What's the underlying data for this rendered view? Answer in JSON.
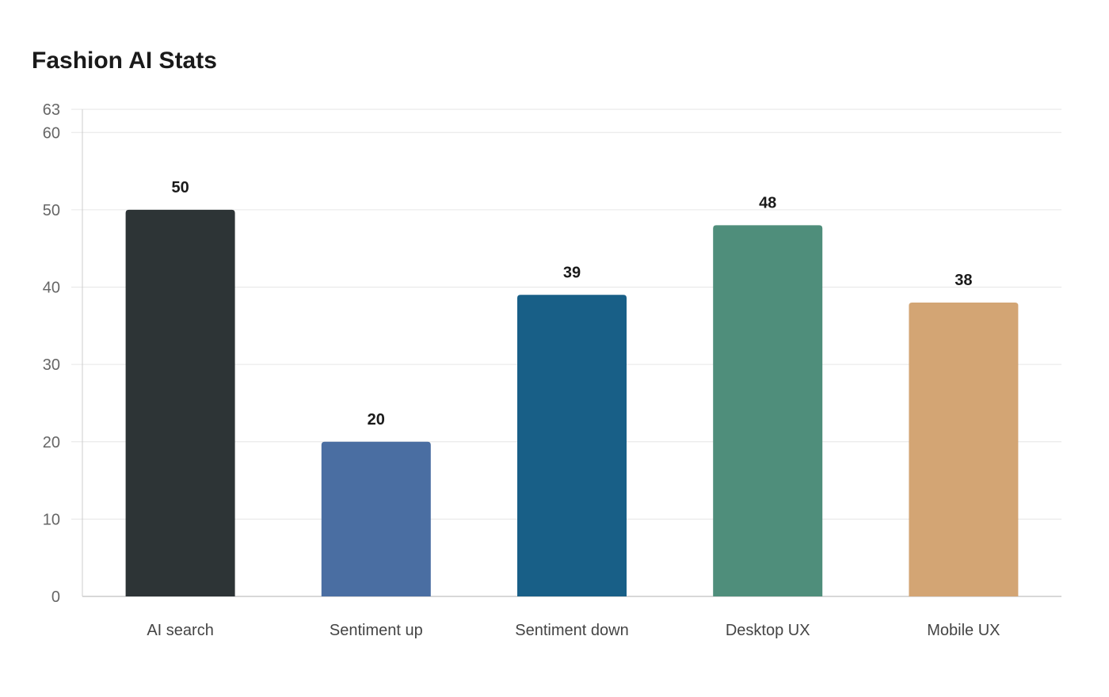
{
  "chart_data": {
    "type": "bar",
    "title": "Fashion AI Stats",
    "xlabel": "",
    "ylabel": "",
    "categories": [
      "AI search",
      "Sentiment up",
      "Sentiment down",
      "Desktop UX",
      "Mobile UX"
    ],
    "values": [
      50,
      20,
      39,
      48,
      38
    ],
    "colors": [
      "#2d3436",
      "#4a6ea2",
      "#185f87",
      "#4f8e7b",
      "#d3a574"
    ],
    "ylim": [
      0,
      63
    ],
    "yticks": [
      0,
      10,
      20,
      30,
      40,
      50,
      60,
      63
    ],
    "grid": true,
    "legend": "none"
  }
}
